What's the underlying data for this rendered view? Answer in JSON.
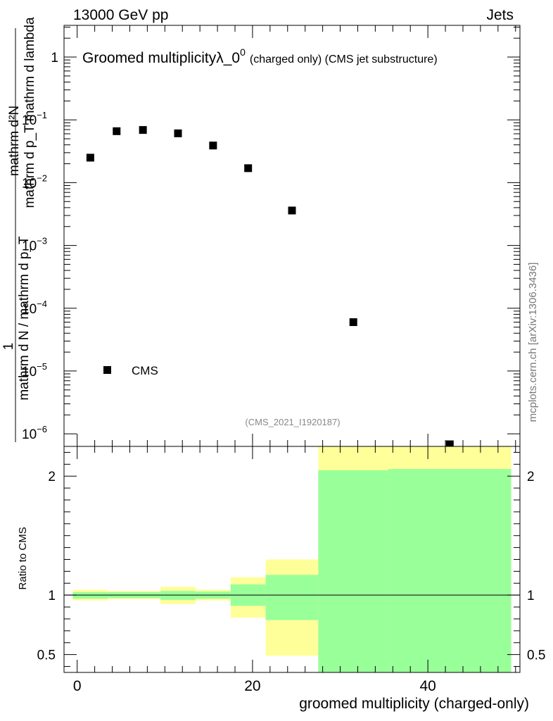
{
  "header": {
    "left_label": "13000 GeV pp",
    "right_label": "Jets"
  },
  "side_credit": "mcplots.cern.ch [arXiv:1306.3436]",
  "analysis_tag": "(CMS_2021_I1920187)",
  "chart_data": [
    {
      "type": "scatter",
      "panel": "main",
      "title_main": "Groomed multiplicityλ_0",
      "title_sup": "0",
      "title_small": "(charged only) (CMS jet substructure)",
      "ylabel_numerator": "mathrm d²N",
      "ylabel_numerator_b": "mathrm d p_T mathrm d lambda",
      "ylabel_frac_top": "1",
      "ylabel_frac_bottom": "mathrm d N / mathrm d p_T",
      "ylabel_sub": "T",
      "yscale": "log",
      "ylim": [
        6.3e-07,
        3.2
      ],
      "xlim": [
        -1.5,
        50.5
      ],
      "y_ticks": [
        {
          "value": 1,
          "label": "1"
        },
        {
          "value": 0.1,
          "base": "10",
          "exp": "−1"
        },
        {
          "value": 0.01,
          "base": "10",
          "exp": "−2"
        },
        {
          "value": 0.001,
          "base": "10",
          "exp": "−3"
        },
        {
          "value": 0.0001,
          "base": "10",
          "exp": "−4"
        },
        {
          "value": 1e-05,
          "base": "10",
          "exp": "−5"
        },
        {
          "value": 1e-06,
          "base": "10",
          "exp": "−6"
        }
      ],
      "series": [
        {
          "name": "CMS",
          "x": [
            1.5,
            4.5,
            7.5,
            11.5,
            15.5,
            19.5,
            24.5,
            31.5,
            42.5
          ],
          "y": [
            0.025,
            0.066,
            0.069,
            0.061,
            0.039,
            0.017,
            0.0036,
            6e-05,
            6.8e-07
          ]
        }
      ],
      "legend": {
        "label": "CMS",
        "position": "bottom-left"
      }
    },
    {
      "type": "area",
      "panel": "ratio",
      "ylabel": "Ratio to CMS",
      "xlabel": "groomed multiplicity (charged-only)",
      "ylim": [
        0.35,
        2.25
      ],
      "xlim": [
        -1.5,
        50.5
      ],
      "x_ticks": [
        {
          "value": 0,
          "label": "0"
        },
        {
          "value": 20,
          "label": "20"
        },
        {
          "value": 40,
          "label": "40"
        }
      ],
      "y_ticks": [
        {
          "value": 0.5,
          "label": "0.5"
        },
        {
          "value": 1,
          "label": "1"
        },
        {
          "value": 2,
          "label": "2"
        }
      ],
      "reference_line": 1,
      "bands": [
        {
          "x0": -0.5,
          "x1": 3.5,
          "yellow": [
            0.955,
            1.045
          ],
          "green": [
            0.97,
            1.025
          ]
        },
        {
          "x0": 3.5,
          "x1": 9.5,
          "yellow": [
            0.965,
            1.035
          ],
          "green": [
            0.975,
            1.025
          ]
        },
        {
          "x0": 9.5,
          "x1": 13.5,
          "yellow": [
            0.925,
            1.07
          ],
          "green": [
            0.96,
            1.035
          ]
        },
        {
          "x0": 13.5,
          "x1": 17.5,
          "yellow": [
            0.955,
            1.045
          ],
          "green": [
            0.97,
            1.03
          ]
        },
        {
          "x0": 17.5,
          "x1": 21.5,
          "yellow": [
            0.81,
            1.15
          ],
          "green": [
            0.91,
            1.09
          ]
        },
        {
          "x0": 21.5,
          "x1": 27.5,
          "yellow": [
            0.49,
            1.3
          ],
          "green": [
            0.79,
            1.17
          ]
        },
        {
          "x0": 27.5,
          "x1": 35.5,
          "yellow": [
            0.35,
            2.25
          ],
          "green": [
            0.35,
            2.05
          ]
        },
        {
          "x0": 35.5,
          "x1": 49.5,
          "yellow": [
            0.35,
            2.25
          ],
          "green": [
            0.35,
            2.06
          ]
        }
      ],
      "colors": {
        "yellow": "#ffff99",
        "green": "#99ff99"
      }
    }
  ]
}
